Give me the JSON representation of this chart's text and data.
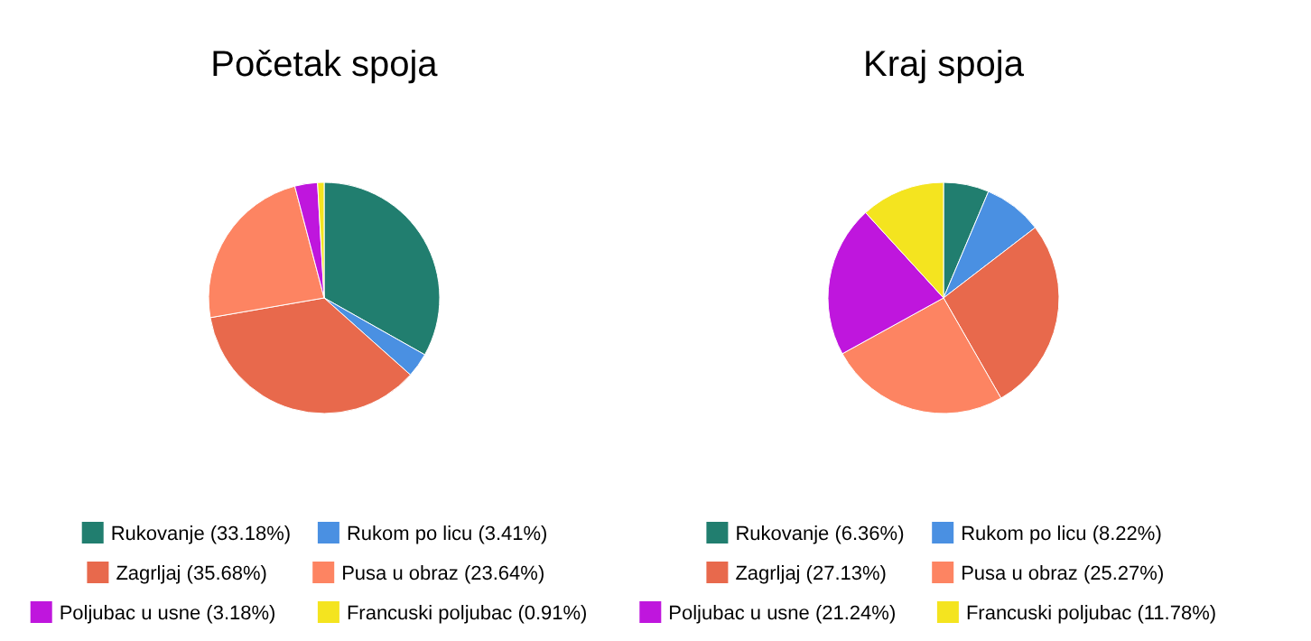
{
  "chart_data": [
    {
      "type": "pie",
      "title": "Početak spoja",
      "categories": [
        "Rukovanje (33.18%)",
        "Rukom po licu (3.41%)",
        "Zagrljaj (35.68%)",
        "Pusa u obraz (23.64%)",
        "Poljubac u usne (3.18%)",
        "Francuski poljubac (0.91%)"
      ],
      "values": [
        33.18,
        3.41,
        35.68,
        23.64,
        3.18,
        0.91
      ],
      "colors": [
        "#217e6f",
        "#4a90e2",
        "#e8694c",
        "#fd8462",
        "#bf16dd",
        "#f4e41f"
      ],
      "legend": "bottom"
    },
    {
      "type": "pie",
      "title": "Kraj spoja",
      "categories": [
        "Rukovanje (6.36%)",
        "Rukom po licu (8.22%)",
        "Zagrljaj (27.13%)",
        "Pusa u obraz (25.27%)",
        "Poljubac u usne (21.24%)",
        "Francuski poljubac (11.78%)"
      ],
      "values": [
        6.36,
        8.22,
        27.13,
        25.27,
        21.24,
        11.78
      ],
      "colors": [
        "#217e6f",
        "#4a90e2",
        "#e8694c",
        "#fd8462",
        "#bf16dd",
        "#f4e41f"
      ],
      "legend": "bottom"
    }
  ]
}
